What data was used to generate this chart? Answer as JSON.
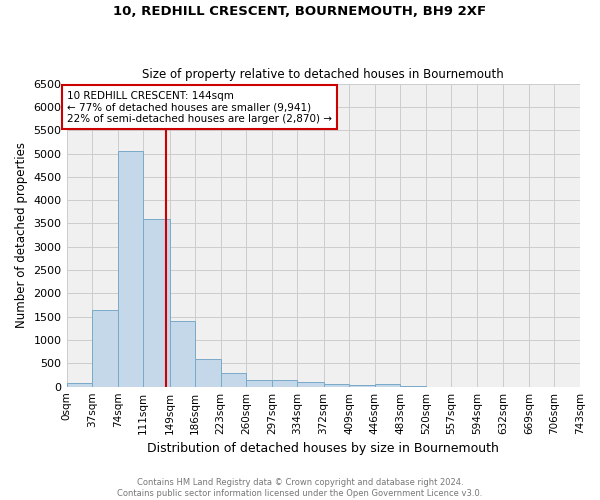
{
  "title1": "10, REDHILL CRESCENT, BOURNEMOUTH, BH9 2XF",
  "title2": "Size of property relative to detached houses in Bournemouth",
  "xlabel": "Distribution of detached houses by size in Bournemouth",
  "ylabel": "Number of detached properties",
  "footer1": "Contains HM Land Registry data © Crown copyright and database right 2024.",
  "footer2": "Contains public sector information licensed under the Open Government Licence v3.0.",
  "annotation_line1": "10 REDHILL CRESCENT: 144sqm",
  "annotation_line2": "← 77% of detached houses are smaller (9,941)",
  "annotation_line3": "22% of semi-detached houses are larger (2,870) →",
  "bar_edges": [
    0,
    37,
    74,
    111,
    149,
    186,
    223,
    260,
    297,
    334,
    372,
    409,
    446,
    483,
    520,
    557,
    594,
    632,
    669,
    706,
    743
  ],
  "bar_heights": [
    75,
    1650,
    5050,
    3600,
    1400,
    600,
    300,
    150,
    140,
    100,
    50,
    40,
    60,
    5,
    3,
    2,
    1,
    1,
    1,
    1
  ],
  "bar_color": "#c5d8ea",
  "bar_edgecolor": "#7aaac8",
  "vline_x": 144,
  "vline_color": "#cc0000",
  "ylim": [
    0,
    6500
  ],
  "yticks": [
    0,
    500,
    1000,
    1500,
    2000,
    2500,
    3000,
    3500,
    4000,
    4500,
    5000,
    5500,
    6000,
    6500
  ],
  "grid_color": "#cccccc",
  "bg_color": "#f0f0f0",
  "annotation_box_edgecolor": "#cc0000",
  "figsize": [
    6.0,
    5.0
  ],
  "dpi": 100
}
